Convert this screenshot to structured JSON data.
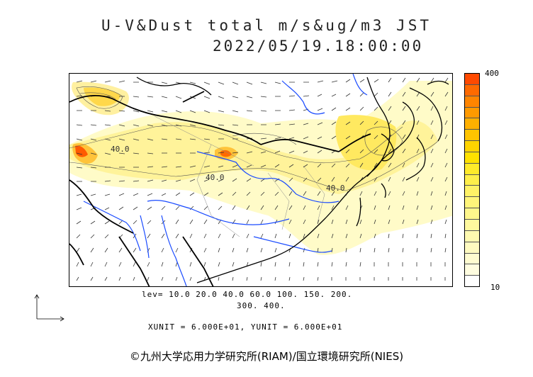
{
  "header": {
    "title": "U-V&Dust total m/s&ug/m3 JST",
    "datetime": "2022/05/19.18:00:00"
  },
  "map": {
    "contour_labels": [
      "40.0",
      "40.0",
      "40.0"
    ],
    "colors": {
      "land_outline": "#000000",
      "rivers": "#1a4bff",
      "wind_vectors": "#333333",
      "light_dust": "#fff9c4",
      "medium_dust": "#fff06b",
      "heavy_dust": "#ffb000",
      "peak_dust": "#ff4000"
    }
  },
  "colorbar": {
    "max_label": "400",
    "min_label": "10",
    "colors": [
      "#ff4a00",
      "#ff6a00",
      "#ff8500",
      "#ff9a00",
      "#ffb000",
      "#ffc400",
      "#ffd400",
      "#ffe100",
      "#ffea2a",
      "#ffef4a",
      "#fff266",
      "#fff57a",
      "#fff78c",
      "#fff99e",
      "#fffab0",
      "#fffbc0",
      "#fffcd0",
      "#fffde0",
      "#ffffff"
    ]
  },
  "levels": {
    "line1": "lev= 10.0 20.0 40.0 60.0 100. 150. 200.",
    "line2": "300. 400."
  },
  "units": "XUNIT = 6.000E+01, YUNIT = 6.000E+01",
  "copyright": "©九州大学応用力学研究所(RIAM)/国立環境研究所(NIES)"
}
